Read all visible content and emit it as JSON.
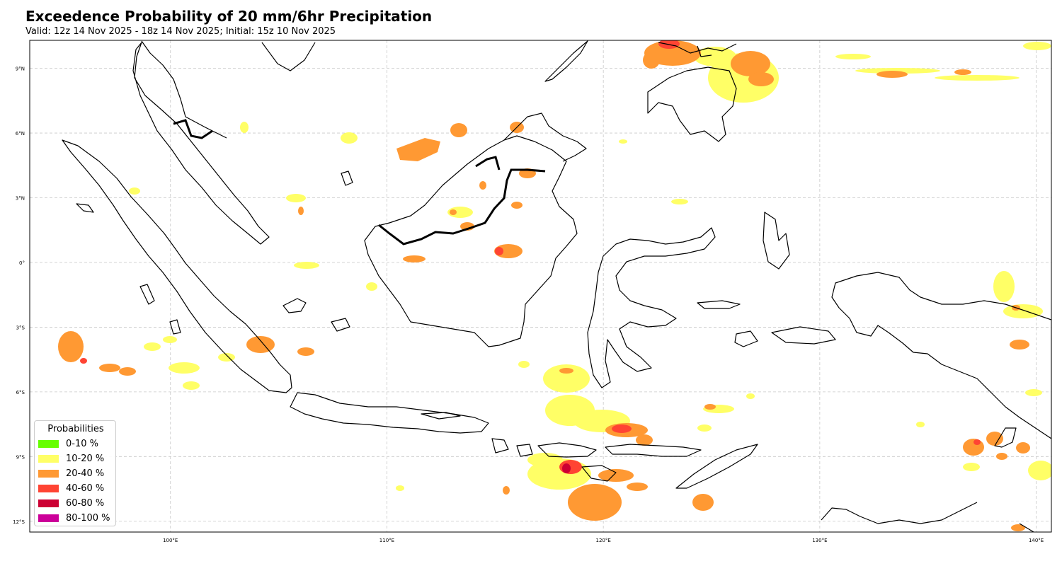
{
  "title": "Exceedence Probability of 20 mm/6hr Precipitation",
  "subtitle": "Valid: 12z 14 Nov 2025 - 18z 14 Nov 2025; Initial: 15z 10 Nov 2025",
  "axes": {
    "lon_range": [
      93.5,
      140.7
    ],
    "lat_range": [
      -12.5,
      10.3
    ],
    "lon_ticks": [
      {
        "value": 100,
        "label": "100°E"
      },
      {
        "value": 110,
        "label": "110°E"
      },
      {
        "value": 120,
        "label": "120°E"
      },
      {
        "value": 130,
        "label": "130°E"
      },
      {
        "value": 140,
        "label": "140°E"
      }
    ],
    "lat_ticks": [
      {
        "value": 9,
        "label": "9°N"
      },
      {
        "value": 6,
        "label": "6°N"
      },
      {
        "value": 3,
        "label": "3°N"
      },
      {
        "value": 0,
        "label": "0°"
      },
      {
        "value": -3,
        "label": "3°S"
      },
      {
        "value": -6,
        "label": "6°S"
      },
      {
        "value": -9,
        "label": "9°S"
      },
      {
        "value": -12,
        "label": "12°S"
      }
    ],
    "grid": true
  },
  "legend": {
    "title": "Probabilities",
    "placement": "bottom-left",
    "items": [
      {
        "label": "0-10 %",
        "color": "#66ff00"
      },
      {
        "label": "10-20 %",
        "color": "#ffff66"
      },
      {
        "label": "20-40 %",
        "color": "#ff9933"
      },
      {
        "label": "40-60 %",
        "color": "#ff4433"
      },
      {
        "label": "60-80 %",
        "color": "#cc0033"
      },
      {
        "label": "80-100 %",
        "color": "#cc0099"
      }
    ]
  }
}
